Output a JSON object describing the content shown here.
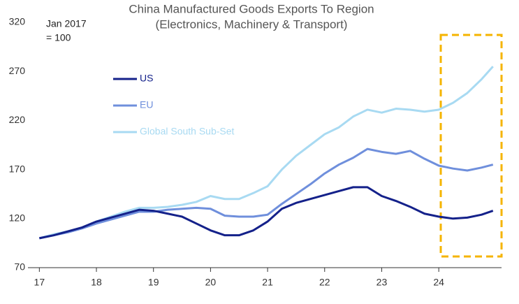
{
  "chart_data": {
    "type": "line",
    "title": "China Manufactured Goods Exports To Region",
    "subtitle": "(Electronics, Machinery & Transport)",
    "annotations": [
      "Jan 2017",
      "= 100"
    ],
    "x": [
      17,
      17.25,
      17.5,
      17.75,
      18,
      18.25,
      18.5,
      18.75,
      19,
      19.25,
      19.5,
      19.75,
      20,
      20.25,
      20.5,
      20.75,
      21,
      21.25,
      21.5,
      21.75,
      22,
      22.25,
      22.5,
      22.75,
      23,
      23.25,
      23.5,
      23.75,
      24,
      24.25,
      24.5,
      24.75,
      24.95
    ],
    "series": [
      {
        "name": "US",
        "color": "#14218a",
        "values": [
          100,
          103,
          107,
          111,
          117,
          121,
          125,
          129,
          128,
          125,
          122,
          115,
          108,
          103,
          103,
          108,
          117,
          130,
          136,
          140,
          144,
          148,
          152,
          152,
          143,
          138,
          132,
          125,
          122,
          120,
          121,
          124,
          128
        ]
      },
      {
        "name": "EU",
        "color": "#6f8fdc",
        "values": [
          100,
          103,
          106,
          110,
          115,
          119,
          123,
          127,
          127,
          129,
          130,
          131,
          130,
          123,
          122,
          122,
          124,
          135,
          145,
          155,
          166,
          175,
          182,
          191,
          188,
          186,
          189,
          181,
          174,
          171,
          169,
          172,
          175
        ]
      },
      {
        "name": "Global South Sub-Set",
        "color": "#a8daf2",
        "values": [
          100,
          104,
          107,
          111,
          117,
          122,
          127,
          131,
          131,
          132,
          134,
          137,
          143,
          140,
          140,
          146,
          153,
          170,
          184,
          195,
          206,
          213,
          224,
          231,
          228,
          232,
          231,
          229,
          231,
          238,
          248,
          262,
          275
        ]
      }
    ],
    "xlim": [
      16.8,
      25.1
    ],
    "ylim": [
      70,
      320
    ],
    "xticks": [
      17,
      18,
      19,
      20,
      21,
      22,
      23,
      24
    ],
    "yticks": [
      70,
      120,
      170,
      220,
      270,
      320
    ]
  }
}
